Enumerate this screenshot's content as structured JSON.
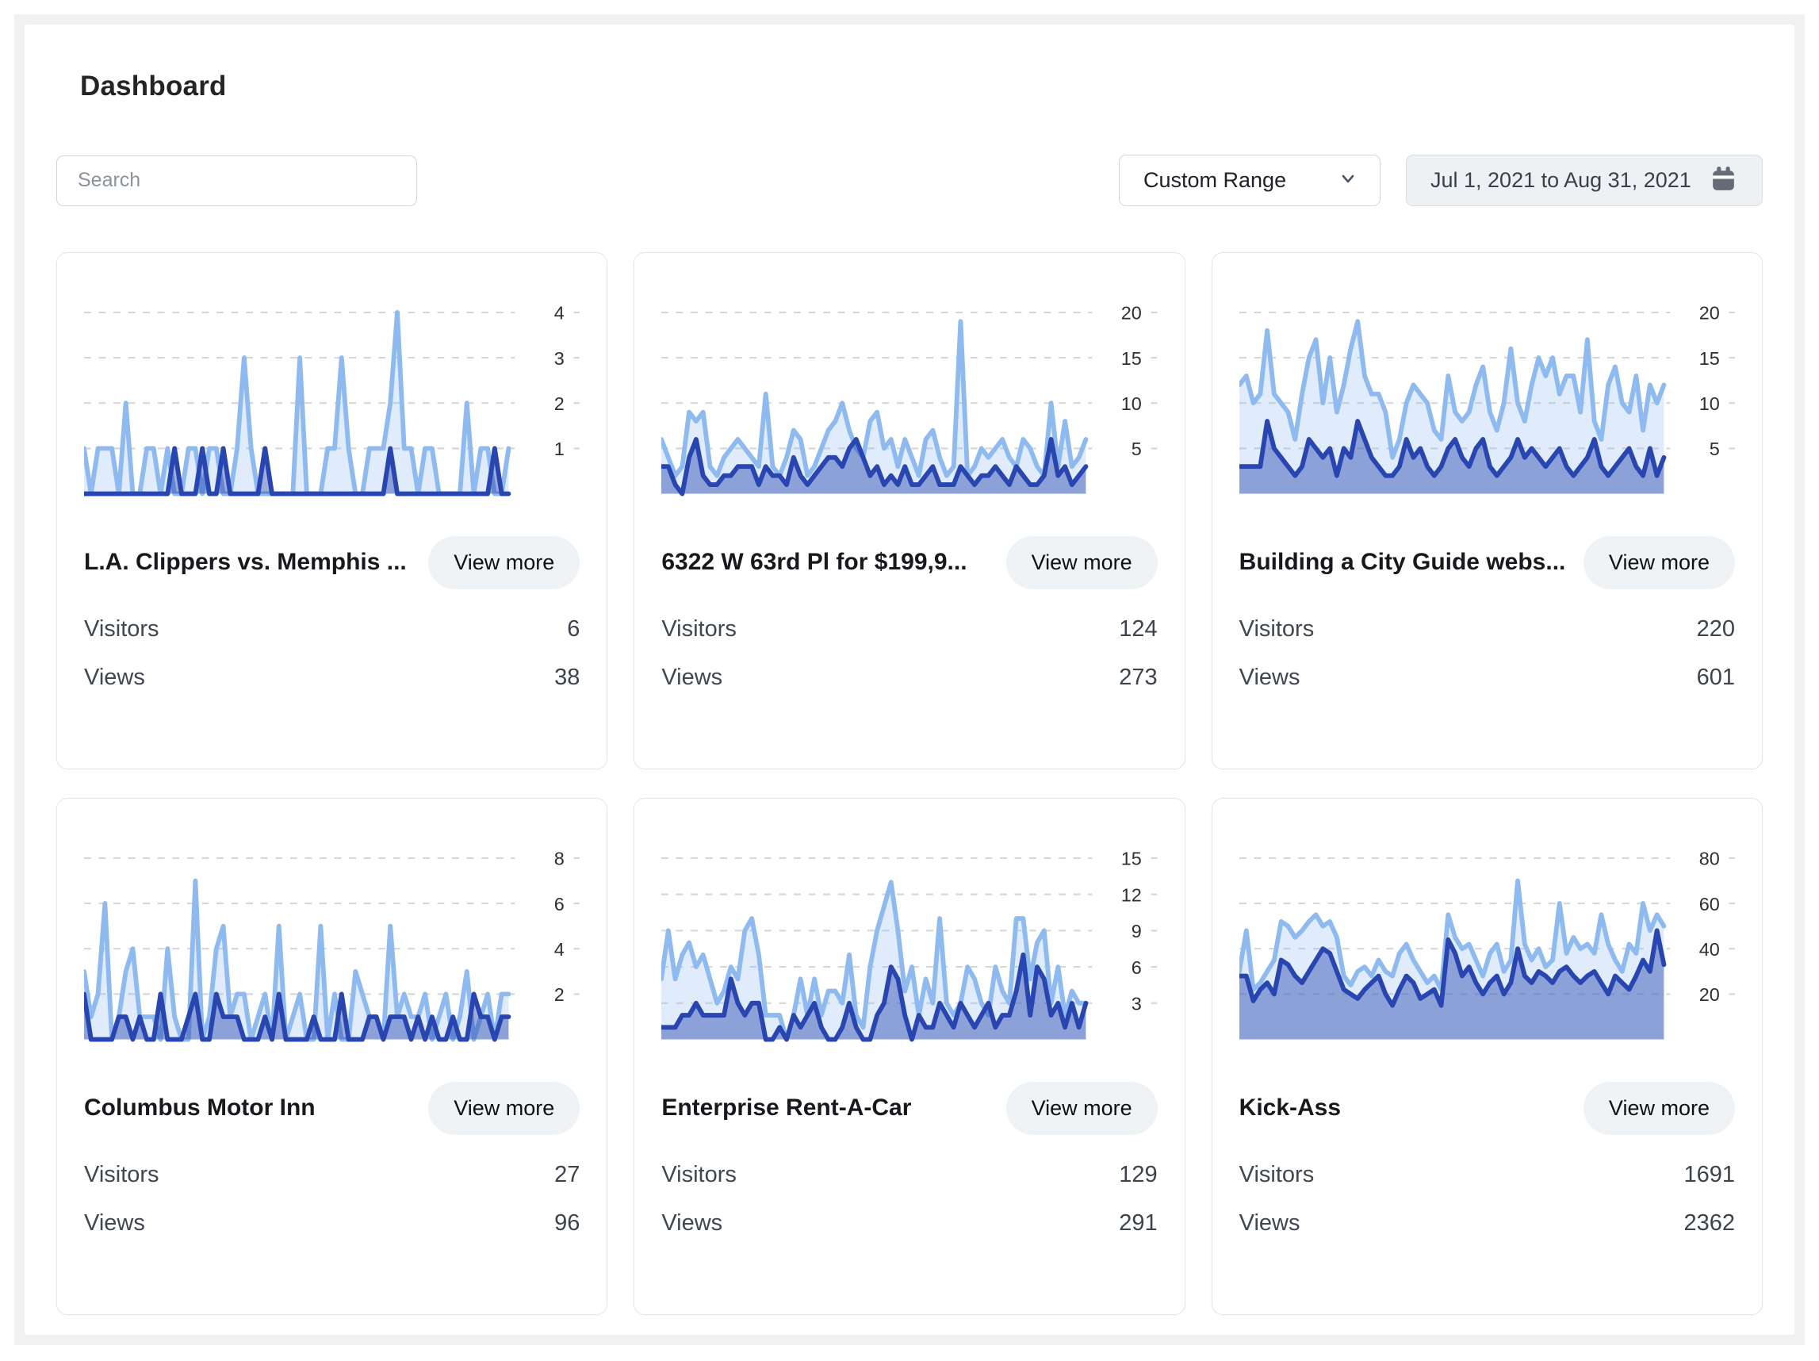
{
  "page": {
    "title": "Dashboard"
  },
  "toolbar": {
    "search_placeholder": "Search",
    "range_selector_value": "Custom Range",
    "date_range": "Jul 1, 2021 to Aug 31, 2021"
  },
  "card_labels": {
    "view_more": "View more",
    "visitors": "Visitors",
    "views": "Views"
  },
  "colors": {
    "views_line": "#8FBAEF",
    "visitors_line": "#2946B0",
    "grid": "#d6d7d8",
    "button_bg": "#f0f3f5",
    "frame_bg": "#f1f1f2"
  },
  "cards": [
    {
      "title": "L.A. Clippers vs. Memphis ...",
      "visitors": "6",
      "views": "38",
      "chart_data": {
        "type": "area",
        "x_range": [
          "Jul 1, 2021",
          "Aug 31, 2021"
        ],
        "yticks": [
          1,
          2,
          3,
          4
        ],
        "ylim": [
          0,
          4
        ],
        "grid": "dashed-horizontal",
        "legend": "none",
        "series": [
          {
            "name": "Views",
            "color": "#8FBAEF",
            "values": [
              1,
              0,
              1,
              1,
              1,
              0,
              2,
              0,
              0,
              1,
              1,
              0,
              1,
              0,
              0,
              1,
              1,
              0,
              1,
              1,
              0,
              0,
              1,
              3,
              1,
              0,
              0,
              0,
              0,
              0,
              0,
              3,
              0,
              0,
              0,
              1,
              1,
              3,
              1,
              0,
              0,
              1,
              1,
              1,
              2,
              4,
              1,
              1,
              0,
              1,
              1,
              0,
              0,
              0,
              0,
              2,
              0,
              1,
              1,
              0,
              0,
              1
            ]
          },
          {
            "name": "Visitors",
            "color": "#2946B0",
            "values": [
              0,
              0,
              0,
              0,
              0,
              0,
              0,
              0,
              0,
              0,
              0,
              0,
              0,
              1,
              0,
              0,
              0,
              1,
              0,
              0,
              1,
              0,
              0,
              0,
              0,
              0,
              1,
              0,
              0,
              0,
              0,
              0,
              0,
              0,
              0,
              0,
              0,
              0,
              0,
              0,
              0,
              0,
              0,
              0,
              1,
              0,
              0,
              0,
              0,
              0,
              0,
              0,
              0,
              0,
              0,
              0,
              0,
              0,
              0,
              1,
              0,
              0
            ]
          }
        ]
      }
    },
    {
      "title": "6322 W 63rd Pl for $199,9...",
      "visitors": "124",
      "views": "273",
      "chart_data": {
        "type": "area",
        "x_range": [
          "Jul 1, 2021",
          "Aug 31, 2021"
        ],
        "yticks": [
          5,
          10,
          15,
          20
        ],
        "ylim": [
          0,
          20
        ],
        "grid": "dashed-horizontal",
        "legend": "none",
        "series": [
          {
            "name": "Views",
            "color": "#8FBAEF",
            "values": [
              6,
              4,
              2,
              3,
              9,
              8,
              9,
              3,
              2,
              4,
              5,
              6,
              5,
              4,
              3,
              11,
              3,
              2,
              4,
              7,
              6,
              2,
              3,
              5,
              7,
              8,
              10,
              7,
              5,
              4,
              8,
              9,
              5,
              6,
              3,
              6,
              4,
              2,
              6,
              7,
              4,
              2,
              3,
              19,
              2,
              3,
              5,
              4,
              5,
              6,
              4,
              3,
              6,
              5,
              3,
              2,
              10,
              3,
              8,
              3,
              4,
              6
            ]
          },
          {
            "name": "Visitors",
            "color": "#2946B0",
            "values": [
              3,
              3,
              1,
              0,
              4,
              6,
              2,
              1,
              1,
              2,
              2,
              3,
              3,
              3,
              1,
              3,
              2,
              2,
              1,
              4,
              2,
              1,
              2,
              3,
              4,
              4,
              3,
              5,
              6,
              4,
              2,
              3,
              1,
              2,
              1,
              3,
              1,
              1,
              2,
              3,
              1,
              1,
              1,
              3,
              2,
              1,
              2,
              2,
              3,
              2,
              1,
              3,
              2,
              1,
              1,
              2,
              6,
              2,
              3,
              1,
              2,
              3
            ]
          }
        ]
      }
    },
    {
      "title": "Building a City Guide webs...",
      "visitors": "220",
      "views": "601",
      "chart_data": {
        "type": "area",
        "x_range": [
          "Jul 1, 2021",
          "Aug 31, 2021"
        ],
        "yticks": [
          5,
          10,
          15,
          20
        ],
        "ylim": [
          0,
          20
        ],
        "grid": "dashed-horizontal",
        "legend": "none",
        "series": [
          {
            "name": "Views",
            "color": "#8FBAEF",
            "values": [
              12,
              13,
              10,
              11,
              18,
              11,
              10,
              9,
              6,
              11,
              15,
              17,
              10,
              15,
              9,
              12,
              16,
              19,
              13,
              11,
              11,
              9,
              4,
              6,
              10,
              12,
              11,
              10,
              7,
              6,
              13,
              9,
              8,
              9,
              12,
              14,
              9,
              7,
              10,
              16,
              10,
              8,
              12,
              15,
              13,
              15,
              11,
              13,
              13,
              9,
              17,
              8,
              6,
              12,
              14,
              10,
              9,
              13,
              7,
              12,
              10,
              12
            ]
          },
          {
            "name": "Visitors",
            "color": "#2946B0",
            "values": [
              3,
              3,
              3,
              3,
              8,
              5,
              4,
              3,
              2,
              3,
              6,
              5,
              4,
              5,
              2,
              5,
              4,
              8,
              6,
              4,
              3,
              2,
              2,
              3,
              6,
              4,
              5,
              3,
              2,
              3,
              5,
              6,
              4,
              3,
              5,
              6,
              3,
              2,
              3,
              4,
              6,
              4,
              5,
              4,
              3,
              4,
              5,
              3,
              2,
              3,
              4,
              6,
              3,
              2,
              3,
              4,
              5,
              3,
              2,
              5,
              2,
              4
            ]
          }
        ]
      }
    },
    {
      "title": "Columbus Motor Inn",
      "visitors": "27",
      "views": "96",
      "chart_data": {
        "type": "area",
        "x_range": [
          "Jul 1, 2021",
          "Aug 31, 2021"
        ],
        "yticks": [
          2,
          4,
          6,
          8
        ],
        "ylim": [
          0,
          8
        ],
        "grid": "dashed-horizontal",
        "legend": "none",
        "series": [
          {
            "name": "Views",
            "color": "#8FBAEF",
            "values": [
              3,
              1,
              2,
              6,
              0,
              1,
              3,
              4,
              1,
              1,
              1,
              0,
              4,
              1,
              0,
              0,
              7,
              0,
              1,
              4,
              5,
              1,
              2,
              2,
              0,
              1,
              2,
              0,
              5,
              0,
              1,
              2,
              0,
              0,
              5,
              0,
              2,
              0,
              0,
              3,
              2,
              1,
              1,
              0,
              5,
              1,
              2,
              1,
              1,
              2,
              0,
              1,
              2,
              0,
              1,
              3,
              0,
              1,
              2,
              0,
              2,
              2
            ]
          },
          {
            "name": "Visitors",
            "color": "#2946B0",
            "values": [
              2,
              0,
              0,
              0,
              0,
              1,
              1,
              0,
              1,
              0,
              0,
              2,
              0,
              0,
              0,
              1,
              2,
              0,
              0,
              2,
              1,
              1,
              1,
              0,
              0,
              0,
              1,
              0,
              2,
              0,
              0,
              0,
              0,
              1,
              0,
              0,
              0,
              2,
              0,
              0,
              0,
              1,
              1,
              0,
              1,
              1,
              1,
              0,
              1,
              0,
              1,
              0,
              0,
              1,
              0,
              0,
              2,
              1,
              1,
              0,
              1,
              1
            ]
          }
        ]
      }
    },
    {
      "title": "Enterprise Rent-A-Car",
      "visitors": "129",
      "views": "291",
      "chart_data": {
        "type": "area",
        "x_range": [
          "Jul 1, 2021",
          "Aug 31, 2021"
        ],
        "yticks": [
          3,
          6,
          9,
          12,
          15
        ],
        "ylim": [
          0,
          15
        ],
        "grid": "dashed-horizontal",
        "legend": "none",
        "series": [
          {
            "name": "Views",
            "color": "#8FBAEF",
            "values": [
              5,
              9,
              5,
              7,
              8,
              6,
              7,
              5,
              3,
              4,
              6,
              5,
              9,
              10,
              7,
              2,
              2,
              2,
              0,
              2,
              5,
              2,
              5,
              2,
              4,
              4,
              3,
              7,
              2,
              1,
              6,
              9,
              11,
              13,
              9,
              4,
              6,
              2,
              5,
              3,
              10,
              3,
              2,
              3,
              6,
              5,
              3,
              2,
              6,
              4,
              3,
              10,
              10,
              5,
              8,
              9,
              3,
              6,
              2,
              4,
              3,
              3
            ]
          },
          {
            "name": "Visitors",
            "color": "#2946B0",
            "values": [
              1,
              1,
              1,
              2,
              2,
              3,
              2,
              2,
              2,
              2,
              5,
              3,
              2,
              3,
              3,
              0,
              0,
              1,
              0,
              2,
              1,
              2,
              3,
              1,
              0,
              0,
              1,
              3,
              1,
              0,
              0,
              2,
              3,
              6,
              5,
              2,
              0,
              2,
              1,
              1,
              3,
              2,
              1,
              3,
              2,
              1,
              2,
              3,
              1,
              2,
              2,
              4,
              7,
              2,
              6,
              5,
              2,
              3,
              1,
              3,
              1,
              3
            ]
          }
        ]
      }
    },
    {
      "title": "Kick-Ass",
      "visitors": "1691",
      "views": "2362",
      "chart_data": {
        "type": "area",
        "x_range": [
          "Jul 1, 2021",
          "Aug 31, 2021"
        ],
        "yticks": [
          20,
          40,
          60,
          80
        ],
        "ylim": [
          0,
          80
        ],
        "grid": "dashed-horizontal",
        "legend": "none",
        "series": [
          {
            "name": "Views",
            "color": "#8FBAEF",
            "values": [
              30,
              48,
              22,
              25,
              30,
              35,
              52,
              50,
              45,
              48,
              52,
              55,
              50,
              52,
              45,
              28,
              24,
              30,
              32,
              28,
              35,
              30,
              28,
              38,
              42,
              35,
              30,
              25,
              28,
              22,
              55,
              45,
              40,
              42,
              35,
              28,
              38,
              42,
              30,
              35,
              70,
              42,
              35,
              40,
              32,
              35,
              60,
              38,
              45,
              40,
              42,
              38,
              55,
              42,
              35,
              30,
              42,
              38,
              60,
              48,
              55,
              50
            ]
          },
          {
            "name": "Visitors",
            "color": "#2946B0",
            "values": [
              28,
              28,
              17,
              22,
              25,
              20,
              35,
              33,
              28,
              25,
              30,
              35,
              40,
              38,
              30,
              22,
              20,
              18,
              22,
              25,
              28,
              20,
              15,
              22,
              28,
              25,
              18,
              20,
              22,
              15,
              44,
              38,
              28,
              32,
              25,
              20,
              25,
              28,
              20,
              25,
              40,
              28,
              25,
              30,
              28,
              25,
              30,
              32,
              28,
              25,
              28,
              30,
              25,
              20,
              28,
              25,
              22,
              28,
              35,
              30,
              48,
              33
            ]
          }
        ]
      }
    }
  ]
}
